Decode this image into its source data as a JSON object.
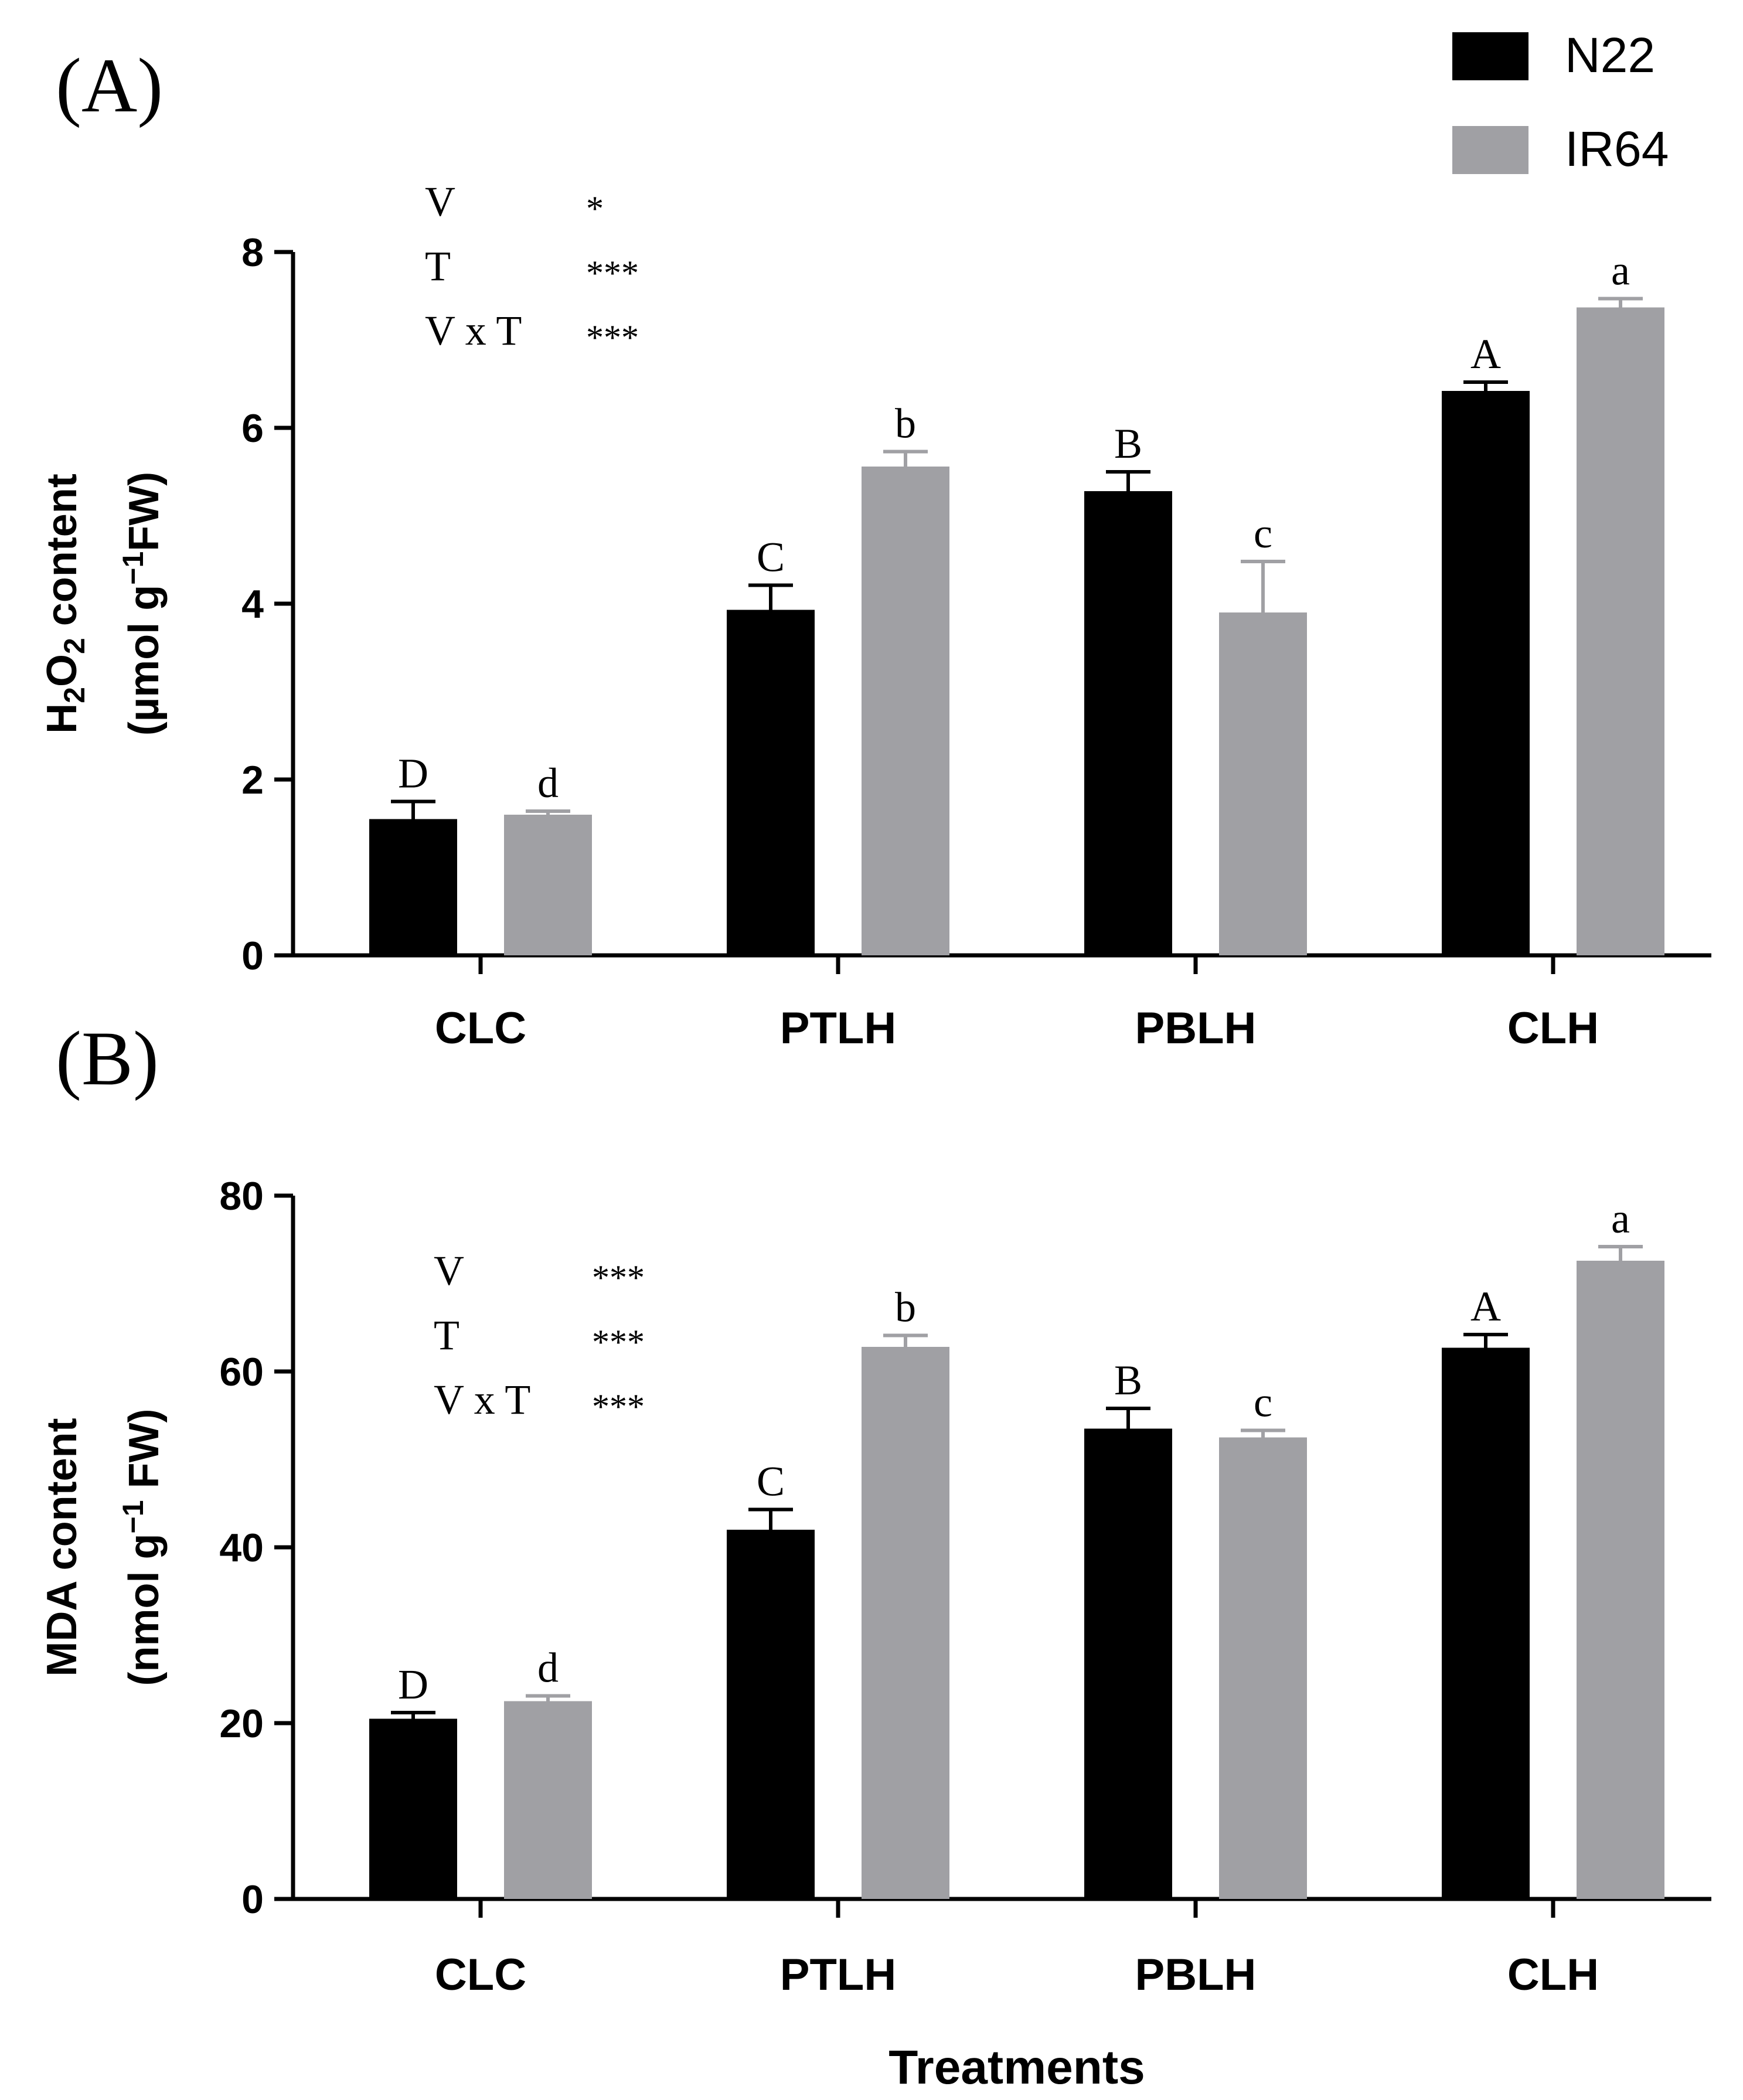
{
  "chart_data": [
    {
      "type": "bar",
      "panel_label": "(A)",
      "categories": [
        "CLC",
        "PTLH",
        "PBLH",
        "CLH"
      ],
      "series": [
        {
          "name": "N22",
          "color": "#000000",
          "values": [
            1.55,
            3.93,
            5.28,
            6.42
          ],
          "errors": [
            0.2,
            0.28,
            0.22,
            0.1
          ],
          "letters": [
            "D",
            "C",
            "B",
            "A"
          ]
        },
        {
          "name": "IR64",
          "color": "#a0a0a4",
          "values": [
            1.6,
            5.56,
            3.9,
            7.37
          ],
          "errors": [
            0.04,
            0.17,
            0.58,
            0.1
          ],
          "letters": [
            "d",
            "b",
            "c",
            "a"
          ]
        }
      ],
      "ylim": [
        0,
        8
      ],
      "yticks": [
        0,
        2,
        4,
        6,
        8
      ],
      "ylabel_line1": "H2O2 content",
      "ylabel_line2": "(µmol g-1FW)",
      "ylabel_parts": {
        "line1": [
          "H",
          "2",
          "O",
          "2",
          " content"
        ],
        "line2": [
          "(µmol g",
          "−1",
          "FW)"
        ]
      },
      "stats": [
        {
          "factor": "V",
          "sig": "*"
        },
        {
          "factor": "T",
          "sig": "***"
        },
        {
          "factor": "V x T",
          "sig": "***"
        }
      ]
    },
    {
      "type": "bar",
      "panel_label": "(B)",
      "categories": [
        "CLC",
        "PTLH",
        "PBLH",
        "CLH"
      ],
      "series": [
        {
          "name": "N22",
          "color": "#000000",
          "values": [
            20.5,
            42,
            53.5,
            62.7
          ],
          "errors": [
            0.7,
            2.3,
            2.3,
            1.5
          ],
          "letters": [
            "D",
            "C",
            "B",
            "A"
          ]
        },
        {
          "name": "IR64",
          "color": "#a0a0a4",
          "values": [
            22.5,
            62.8,
            52.5,
            72.6
          ],
          "errors": [
            0.6,
            1.3,
            0.8,
            1.6
          ],
          "letters": [
            "d",
            "b",
            "c",
            "a"
          ]
        }
      ],
      "ylim": [
        0,
        80
      ],
      "yticks": [
        0,
        20,
        40,
        60,
        80
      ],
      "ylabel_line1": "MDA content",
      "ylabel_line2": "(nmol g-1 FW)",
      "ylabel_parts": {
        "line1": [
          "MDA content"
        ],
        "line2": [
          "(nmol g",
          "−1",
          " FW)"
        ]
      },
      "xlabel": "Treatments",
      "stats": [
        {
          "factor": "V",
          "sig": "***"
        },
        {
          "factor": "T",
          "sig": "***"
        },
        {
          "factor": "V x T",
          "sig": "***"
        }
      ]
    }
  ],
  "legend": {
    "position": "top-right",
    "items": [
      {
        "name": "N22",
        "color": "#000000"
      },
      {
        "name": "IR64",
        "color": "#a0a0a4"
      }
    ]
  }
}
